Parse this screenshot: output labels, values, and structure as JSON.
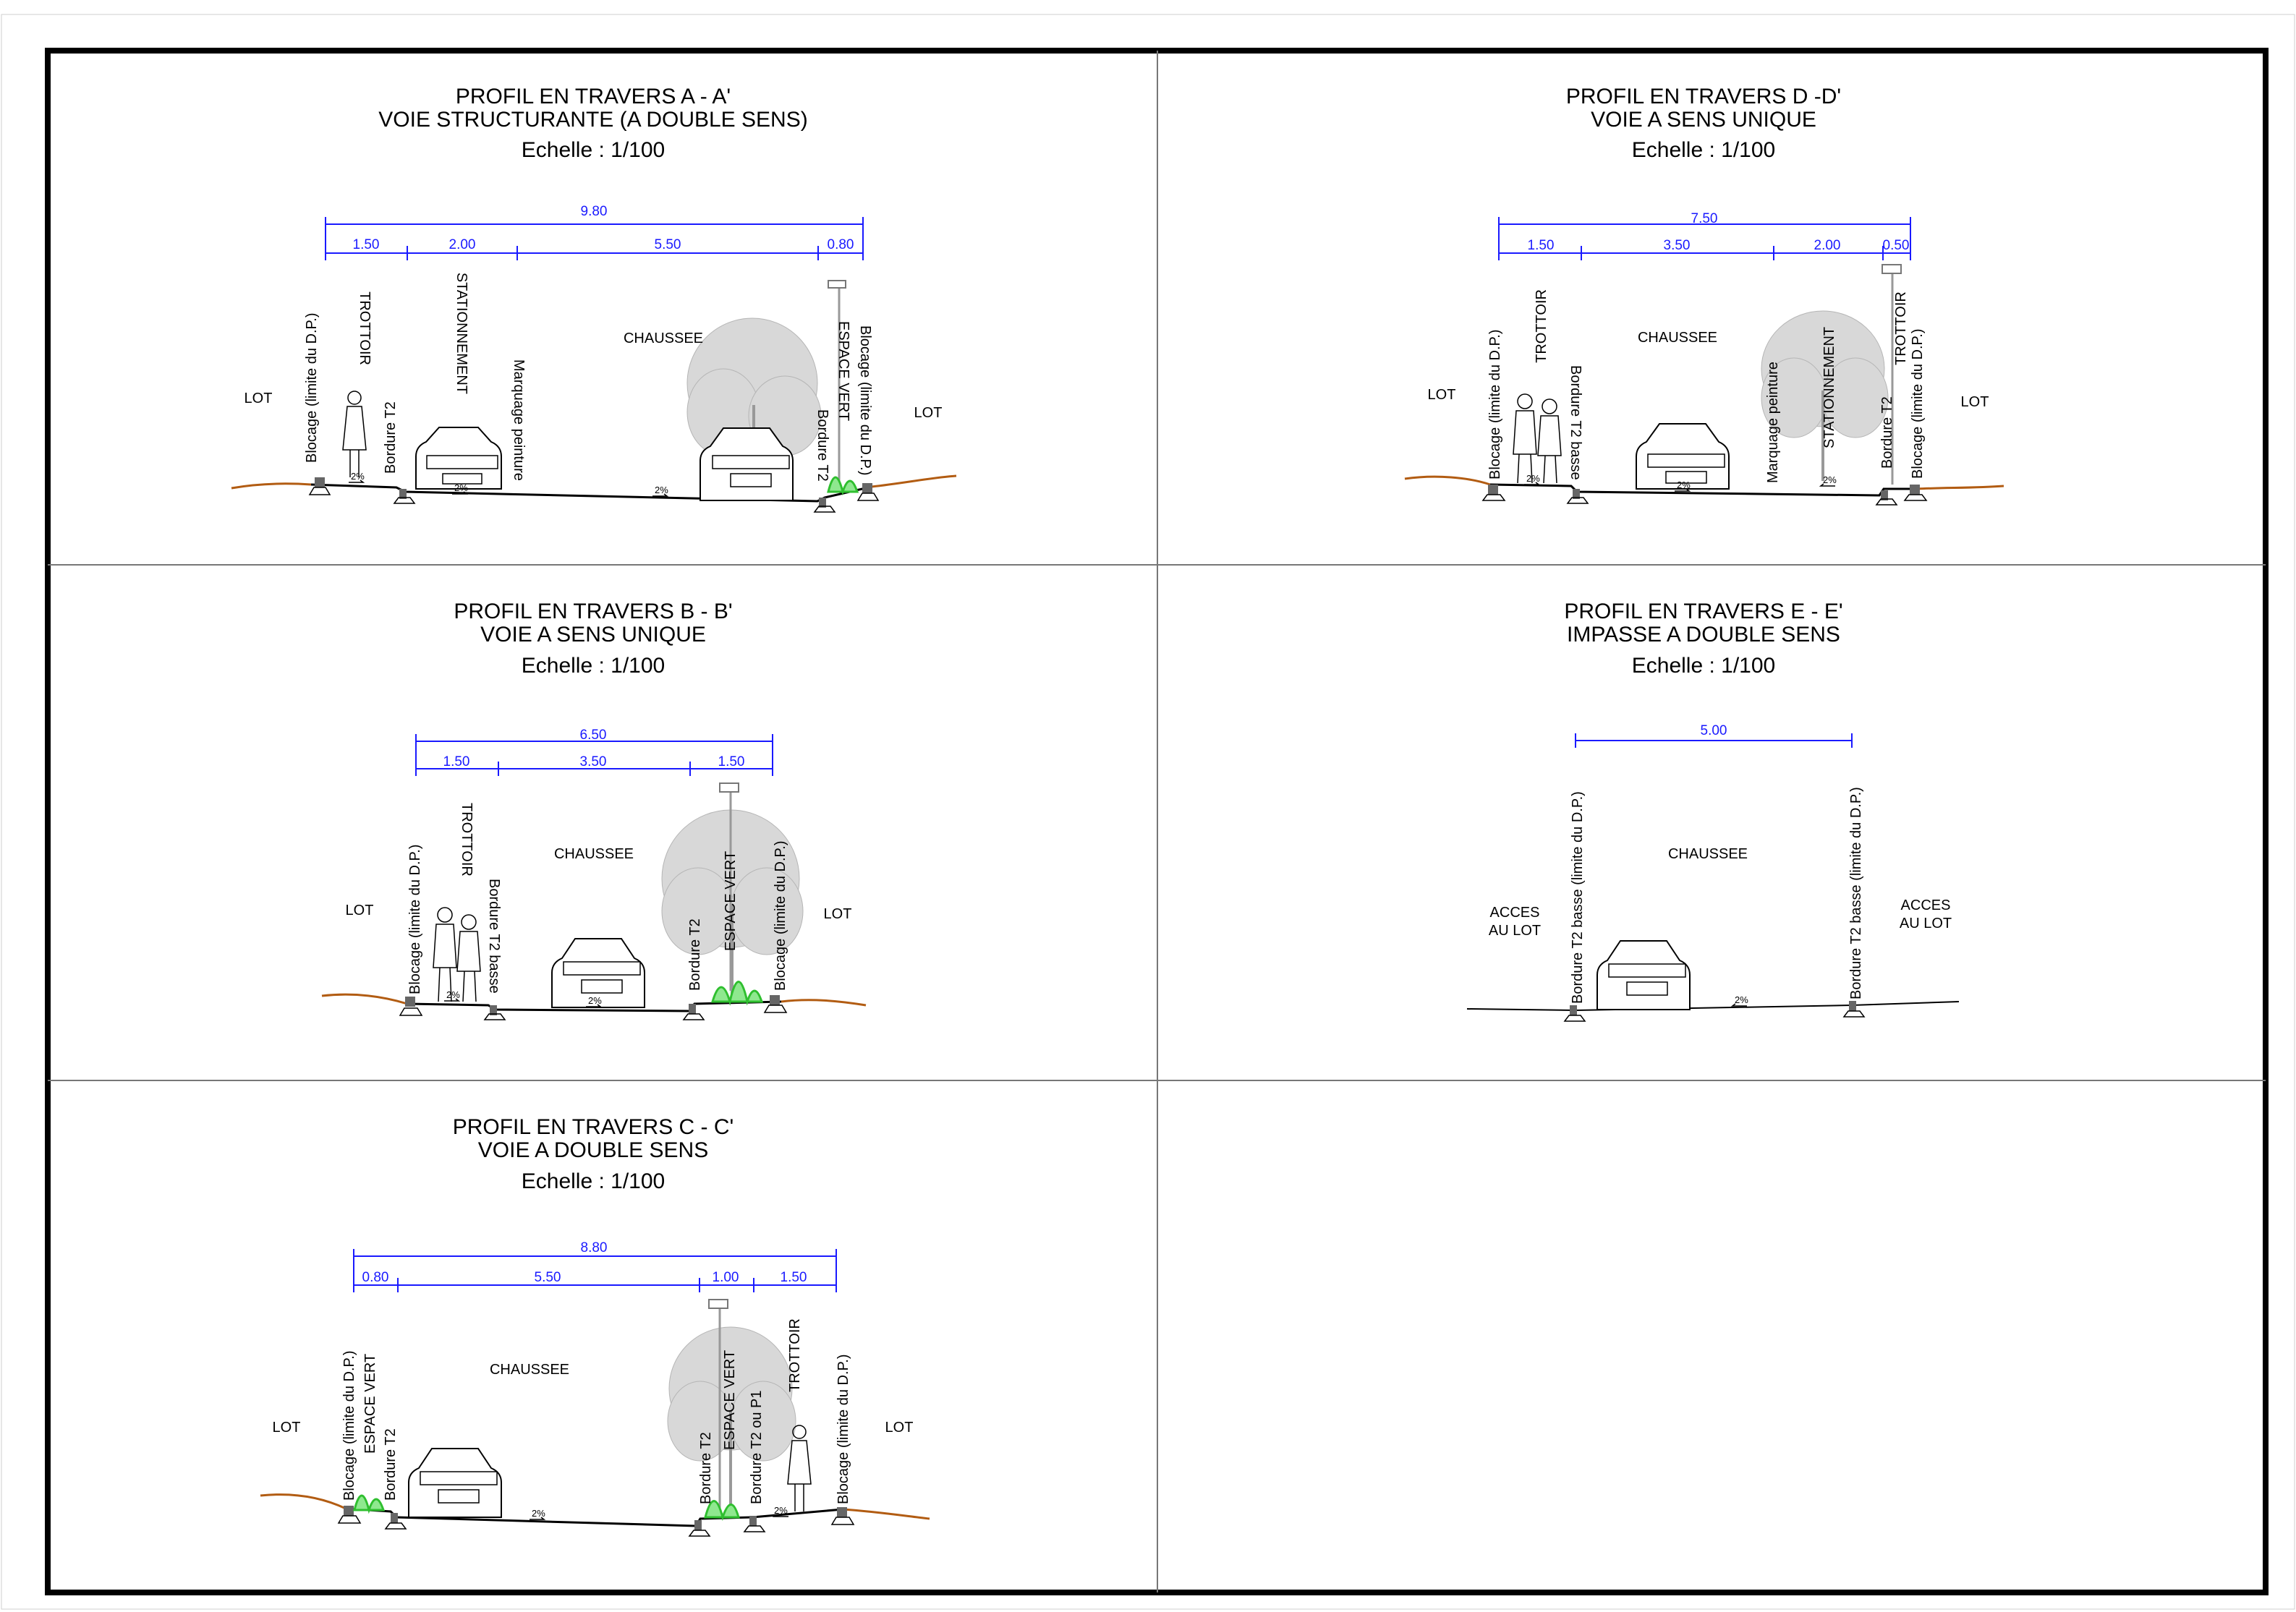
{
  "panels": [
    {
      "id": "A",
      "title": [
        "PROFIL EN TRAVERS A - A'",
        "VOIE STRUCTURANTE (A DOUBLE SENS)",
        "Echelle : 1/100"
      ],
      "total": "9.80",
      "segments": [
        "1.50",
        "2.00",
        "5.50",
        "0.80"
      ],
      "labels": [
        "LOT",
        "Blocage (limite du D.P.)",
        "TROTTOIR",
        "Bordure T2",
        "STATIONNEMENT",
        "Marquage peinture",
        "CHAUSSEE",
        "ESPACE VERT",
        "Bordure T2",
        "Blocage (limite du D.P.)",
        "LOT"
      ],
      "slopes": [
        "2%",
        "2%",
        "2%"
      ]
    },
    {
      "id": "D",
      "title": [
        "PROFIL EN TRAVERS D -D'",
        "VOIE A SENS UNIQUE",
        "Echelle : 1/100"
      ],
      "total": "7.50",
      "segments": [
        "1.50",
        "3.50",
        "2.00",
        "0.50"
      ],
      "labels": [
        "LOT",
        "Blocage (limite du D.P.)",
        "TROTTOIR",
        "Bordure T2 basse",
        "CHAUSSEE",
        "Marquage peinture",
        "STATIONNEMENT",
        "Bordure T2",
        "TROTTOIR",
        "Blocage (limite du D.P.)",
        "LOT"
      ],
      "slopes": [
        "2%",
        "2%",
        "2%"
      ]
    },
    {
      "id": "B",
      "title": [
        "PROFIL EN TRAVERS B - B'",
        "VOIE A SENS UNIQUE",
        "Echelle : 1/100"
      ],
      "total": "6.50",
      "segments": [
        "1.50",
        "3.50",
        "1.50"
      ],
      "labels": [
        "LOT",
        "Blocage (limite du D.P.)",
        "TROTTOIR",
        "Bordure T2 basse",
        "CHAUSSEE",
        "Bordure T2",
        "ESPACE VERT",
        "Blocage (limite du D.P.)",
        "LOT"
      ],
      "slopes": [
        "2%",
        "2%"
      ]
    },
    {
      "id": "E",
      "title": [
        "PROFIL EN TRAVERS E - E'",
        "IMPASSE A DOUBLE SENS",
        "Echelle : 1/100"
      ],
      "total": "5.00",
      "segments": [],
      "labels": [
        "ACCES",
        "AU LOT",
        "Bordure T2 basse (limite du D.P.)",
        "CHAUSSEE",
        "Bordure T2 basse (limite du D.P.)",
        "ACCES",
        "AU LOT"
      ],
      "slopes": [
        "2%"
      ]
    },
    {
      "id": "C",
      "title": [
        "PROFIL EN TRAVERS C - C'",
        "VOIE A DOUBLE SENS",
        "Echelle : 1/100"
      ],
      "total": "8.80",
      "segments": [
        "0.80",
        "5.50",
        "1.00",
        "1.50"
      ],
      "labels": [
        "LOT",
        "Blocage (limite du D.P.)",
        "ESPACE VERT",
        "Bordure T2",
        "CHAUSSEE",
        "Bordure T2",
        "ESPACE VERT",
        "Bordure T2 ou P1",
        "TROTTOIR",
        "Blocage (limite du D.P.)",
        "LOT"
      ],
      "slopes": [
        "2%",
        "2%"
      ]
    }
  ]
}
